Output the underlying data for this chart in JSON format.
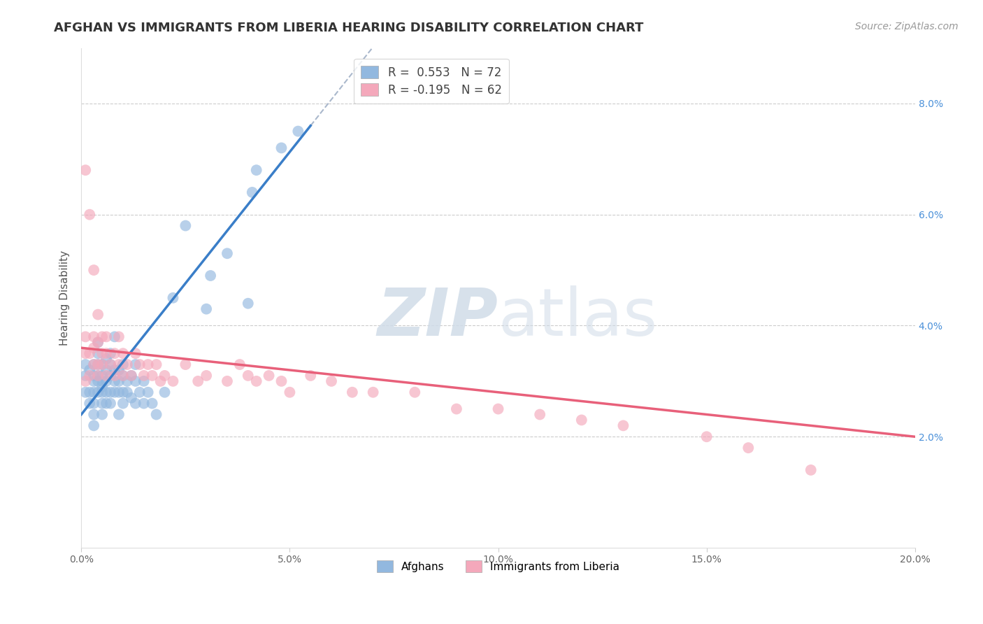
{
  "title": "AFGHAN VS IMMIGRANTS FROM LIBERIA HEARING DISABILITY CORRELATION CHART",
  "source": "Source: ZipAtlas.com",
  "ylabel": "Hearing Disability",
  "xlim": [
    0.0,
    0.2
  ],
  "ylim": [
    0.0,
    0.09
  ],
  "blue_color": "#92b8df",
  "pink_color": "#f4a8bb",
  "blue_line_color": "#3a7ec8",
  "pink_line_color": "#e8607a",
  "dashed_line_color": "#aab8cc",
  "watermark_color": "#d0dce8",
  "title_fontsize": 13,
  "source_fontsize": 10,
  "axis_label_fontsize": 11,
  "tick_fontsize": 10,
  "legend_r1": "R =  0.553",
  "legend_n1": "N = 72",
  "legend_r2": "R = -0.195",
  "legend_n2": "N = 62",
  "legend_bottom": [
    "Afghans",
    "Immigrants from Liberia"
  ],
  "blue_x": [
    0.001,
    0.001,
    0.001,
    0.002,
    0.002,
    0.002,
    0.003,
    0.003,
    0.003,
    0.003,
    0.003,
    0.003,
    0.003,
    0.004,
    0.004,
    0.004,
    0.004,
    0.004,
    0.004,
    0.005,
    0.005,
    0.005,
    0.005,
    0.005,
    0.005,
    0.005,
    0.006,
    0.006,
    0.006,
    0.006,
    0.006,
    0.007,
    0.007,
    0.007,
    0.007,
    0.007,
    0.008,
    0.008,
    0.008,
    0.008,
    0.009,
    0.009,
    0.009,
    0.009,
    0.01,
    0.01,
    0.01,
    0.01,
    0.011,
    0.011,
    0.012,
    0.012,
    0.013,
    0.013,
    0.013,
    0.014,
    0.015,
    0.015,
    0.016,
    0.017,
    0.018,
    0.02,
    0.022,
    0.025,
    0.03,
    0.031,
    0.035,
    0.04,
    0.041,
    0.042,
    0.048,
    0.052
  ],
  "blue_y": [
    0.031,
    0.033,
    0.028,
    0.032,
    0.028,
    0.026,
    0.03,
    0.028,
    0.026,
    0.024,
    0.022,
    0.031,
    0.033,
    0.03,
    0.028,
    0.031,
    0.033,
    0.035,
    0.037,
    0.029,
    0.031,
    0.033,
    0.03,
    0.028,
    0.026,
    0.024,
    0.032,
    0.03,
    0.028,
    0.026,
    0.034,
    0.031,
    0.033,
    0.035,
    0.028,
    0.026,
    0.03,
    0.032,
    0.028,
    0.038,
    0.03,
    0.032,
    0.028,
    0.024,
    0.031,
    0.033,
    0.028,
    0.026,
    0.03,
    0.028,
    0.031,
    0.027,
    0.033,
    0.03,
    0.026,
    0.028,
    0.03,
    0.026,
    0.028,
    0.026,
    0.024,
    0.028,
    0.045,
    0.058,
    0.043,
    0.049,
    0.053,
    0.044,
    0.064,
    0.068,
    0.072,
    0.075
  ],
  "pink_x": [
    0.001,
    0.001,
    0.001,
    0.001,
    0.002,
    0.002,
    0.002,
    0.003,
    0.003,
    0.003,
    0.003,
    0.004,
    0.004,
    0.004,
    0.004,
    0.005,
    0.005,
    0.005,
    0.006,
    0.006,
    0.006,
    0.007,
    0.008,
    0.008,
    0.009,
    0.009,
    0.01,
    0.01,
    0.011,
    0.012,
    0.013,
    0.014,
    0.015,
    0.016,
    0.017,
    0.018,
    0.019,
    0.02,
    0.022,
    0.025,
    0.028,
    0.03,
    0.035,
    0.038,
    0.04,
    0.042,
    0.045,
    0.048,
    0.05,
    0.055,
    0.06,
    0.065,
    0.07,
    0.08,
    0.09,
    0.1,
    0.11,
    0.12,
    0.13,
    0.15,
    0.16,
    0.175
  ],
  "pink_y": [
    0.035,
    0.068,
    0.03,
    0.038,
    0.06,
    0.035,
    0.031,
    0.033,
    0.036,
    0.038,
    0.05,
    0.031,
    0.037,
    0.033,
    0.042,
    0.035,
    0.033,
    0.038,
    0.031,
    0.035,
    0.038,
    0.033,
    0.035,
    0.031,
    0.033,
    0.038,
    0.031,
    0.035,
    0.033,
    0.031,
    0.035,
    0.033,
    0.031,
    0.033,
    0.031,
    0.033,
    0.03,
    0.031,
    0.03,
    0.033,
    0.03,
    0.031,
    0.03,
    0.033,
    0.031,
    0.03,
    0.031,
    0.03,
    0.028,
    0.031,
    0.03,
    0.028,
    0.028,
    0.028,
    0.025,
    0.025,
    0.024,
    0.023,
    0.022,
    0.02,
    0.018,
    0.014
  ]
}
